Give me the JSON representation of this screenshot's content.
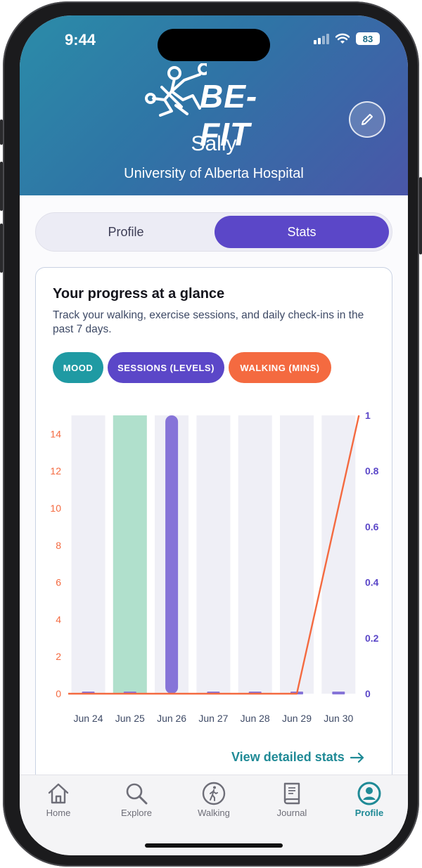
{
  "status_bar": {
    "time": "9:44",
    "battery": "83"
  },
  "header": {
    "logo_text": "BE-FIT",
    "user_name": "Sally",
    "hospital": "University of Alberta Hospital",
    "edit_icon": "pencil-icon"
  },
  "segmented": {
    "profile_label": "Profile",
    "stats_label": "Stats",
    "active": "Stats"
  },
  "card": {
    "title": "Your progress at a glance",
    "subtitle": "Track your walking, exercise sessions, and daily check-ins in the past 7 days."
  },
  "filters": {
    "mood": "MOOD",
    "sessions": "SESSIONS (LEVELS)",
    "walking": "WALKING (MINS)"
  },
  "colors": {
    "accent": "#5b47c8",
    "teal": "#1f8a96",
    "walking": "#f46a40",
    "mood_bar": "#b0e0cc",
    "session_bar": "#8674d8",
    "bar_track": "#efeff6"
  },
  "chart_data": {
    "type": "bar",
    "categories": [
      "Jun 24",
      "Jun 25",
      "Jun 26",
      "Jun 27",
      "Jun 28",
      "Jun 29",
      "Jun 30"
    ],
    "left_axis": {
      "ticks": [
        "0",
        "2",
        "4",
        "6",
        "8",
        "10",
        "12",
        "14"
      ],
      "range": [
        0,
        15
      ]
    },
    "right_axis": {
      "ticks": [
        "0",
        "0.2",
        "0.4",
        "0.6",
        "0.8",
        "1"
      ],
      "range": [
        0,
        1
      ]
    },
    "series": [
      {
        "name": "MOOD",
        "values": [
          0,
          1,
          0,
          0,
          0,
          0,
          0
        ]
      },
      {
        "name": "SESSIONS (LEVELS)",
        "values": [
          0,
          0,
          1,
          0,
          0,
          0,
          0
        ]
      },
      {
        "name": "WALKING (MINS)",
        "values": [
          0,
          0,
          0,
          0,
          0,
          0,
          15
        ]
      }
    ],
    "grid": false,
    "legend": "top"
  },
  "link": {
    "label": "View detailed stats",
    "icon": "arrow-right-icon"
  },
  "nav": [
    {
      "label": "Home",
      "icon": "home-icon"
    },
    {
      "label": "Explore",
      "icon": "search-icon"
    },
    {
      "label": "Walking",
      "icon": "walking-icon"
    },
    {
      "label": "Journal",
      "icon": "book-icon"
    },
    {
      "label": "Profile",
      "icon": "profile-icon",
      "active": true
    }
  ]
}
